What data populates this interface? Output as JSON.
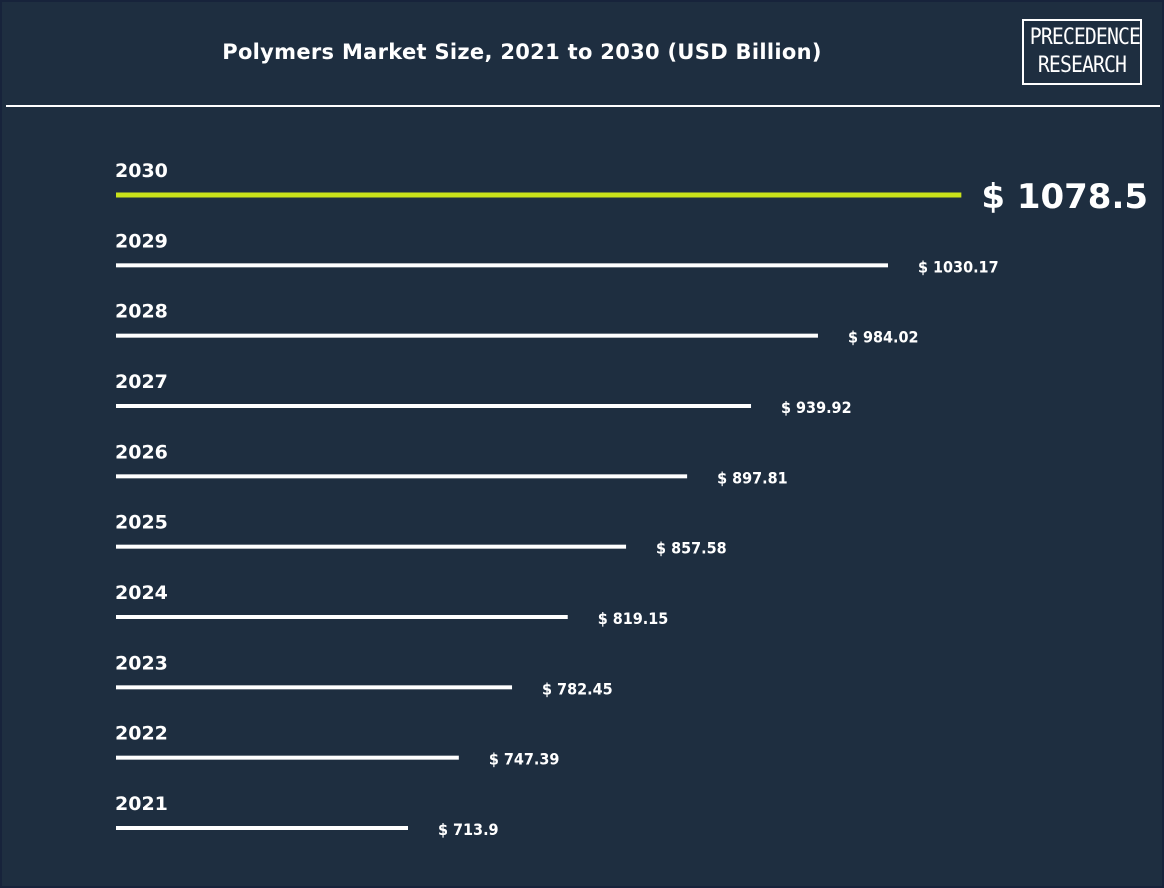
{
  "colors": {
    "background": "#1e2e40",
    "bar": "#ffffff",
    "highlight_bar": "#c9e21a",
    "text": "#ffffff"
  },
  "logo": {
    "line1": "PRECEDENCE",
    "line2": "RESEARCH"
  },
  "chart_data": {
    "type": "bar",
    "orientation": "horizontal",
    "title": "Polymers Market Size, 2021 to 2030 (USD Billion)",
    "xlabel": "",
    "ylabel": "",
    "grid": false,
    "value_prefix": "$ ",
    "highlight_category": "2030",
    "categories": [
      "2030",
      "2029",
      "2028",
      "2027",
      "2026",
      "2025",
      "2024",
      "2023",
      "2022",
      "2021"
    ],
    "values": [
      1078.5,
      1030.17,
      984.02,
      939.92,
      897.81,
      857.58,
      819.15,
      782.45,
      747.39,
      713.9
    ],
    "value_labels": [
      "$ 1078.5",
      "$ 1030.17",
      "$ 984.02",
      "$ 939.92",
      "$ 897.81",
      "$ 857.58",
      "$ 819.15",
      "$ 782.45",
      "$ 747.39",
      "$ 713.9"
    ]
  }
}
